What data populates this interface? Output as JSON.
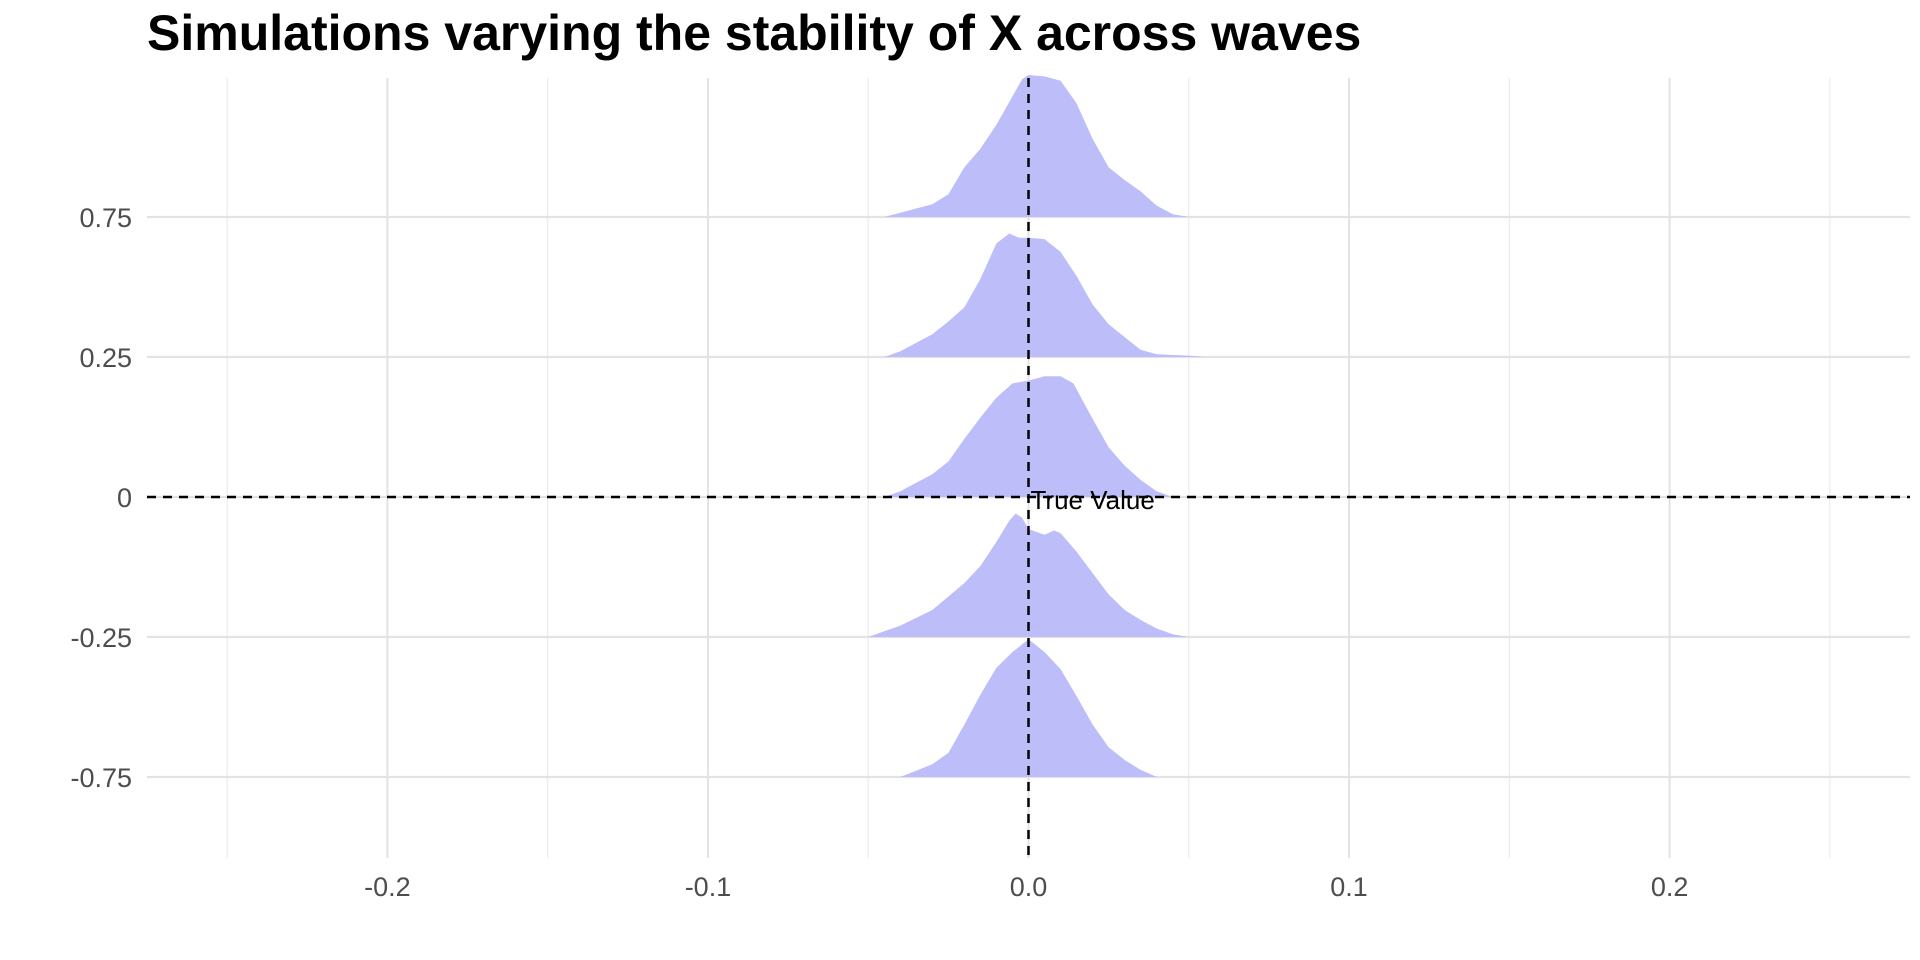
{
  "chart_data": {
    "type": "area",
    "title": "Simulations varying the stability of X across waves",
    "xlabel": "",
    "ylabel": "",
    "xlim": [
      -0.275,
      0.275
    ],
    "x_ticks": [
      "-0.2",
      "-0.1",
      "0.0",
      "0.1",
      "0.2"
    ],
    "x_tick_values": [
      -0.2,
      -0.1,
      0.0,
      0.1,
      0.2
    ],
    "x_minor_values": [
      -0.25,
      -0.15,
      -0.05,
      0.05,
      0.15,
      0.25
    ],
    "y_ticks": [
      "0.75",
      "0.25",
      "0",
      "-0.25",
      "-0.75"
    ],
    "grid": true,
    "fill_color": "#bdbdfa",
    "reference_lines": [
      {
        "orientation": "vertical",
        "value": 0.0,
        "style": "dashed"
      },
      {
        "orientation": "horizontal",
        "value": 0.0,
        "style": "dashed"
      }
    ],
    "annotation": {
      "text": "True Value",
      "x": 0.0,
      "y": 0.0
    },
    "series": [
      {
        "baseline": "0.75",
        "points": [
          [
            -0.045,
            0.0
          ],
          [
            -0.04,
            0.03
          ],
          [
            -0.03,
            0.09
          ],
          [
            -0.025,
            0.16
          ],
          [
            -0.02,
            0.35
          ],
          [
            -0.015,
            0.48
          ],
          [
            -0.01,
            0.65
          ],
          [
            -0.005,
            0.85
          ],
          [
            -0.002,
            0.97
          ],
          [
            0.0,
            1.0
          ],
          [
            0.005,
            0.99
          ],
          [
            0.01,
            0.96
          ],
          [
            0.015,
            0.8
          ],
          [
            0.02,
            0.55
          ],
          [
            0.025,
            0.35
          ],
          [
            0.03,
            0.26
          ],
          [
            0.035,
            0.18
          ],
          [
            0.04,
            0.08
          ],
          [
            0.045,
            0.02
          ],
          [
            0.05,
            0.0
          ]
        ]
      },
      {
        "baseline": "0.25",
        "points": [
          [
            -0.045,
            0.0
          ],
          [
            -0.04,
            0.04
          ],
          [
            -0.03,
            0.16
          ],
          [
            -0.025,
            0.25
          ],
          [
            -0.02,
            0.35
          ],
          [
            -0.015,
            0.55
          ],
          [
            -0.01,
            0.8
          ],
          [
            -0.006,
            0.87
          ],
          [
            -0.003,
            0.84
          ],
          [
            0.0,
            0.84
          ],
          [
            0.005,
            0.83
          ],
          [
            0.01,
            0.74
          ],
          [
            0.015,
            0.57
          ],
          [
            0.02,
            0.37
          ],
          [
            0.025,
            0.23
          ],
          [
            0.03,
            0.14
          ],
          [
            0.035,
            0.05
          ],
          [
            0.04,
            0.02
          ],
          [
            0.05,
            0.01
          ],
          [
            0.055,
            0.0
          ]
        ]
      },
      {
        "baseline": "0",
        "points": [
          [
            -0.045,
            0.0
          ],
          [
            -0.04,
            0.04
          ],
          [
            -0.03,
            0.16
          ],
          [
            -0.025,
            0.25
          ],
          [
            -0.02,
            0.41
          ],
          [
            -0.015,
            0.56
          ],
          [
            -0.01,
            0.7
          ],
          [
            -0.005,
            0.8
          ],
          [
            0.0,
            0.82
          ],
          [
            0.005,
            0.85
          ],
          [
            0.01,
            0.85
          ],
          [
            0.014,
            0.8
          ],
          [
            0.02,
            0.55
          ],
          [
            0.025,
            0.35
          ],
          [
            0.03,
            0.22
          ],
          [
            0.035,
            0.12
          ],
          [
            0.04,
            0.04
          ],
          [
            0.045,
            0.0
          ]
        ]
      },
      {
        "baseline": "-0.25",
        "points": [
          [
            -0.05,
            0.0
          ],
          [
            -0.04,
            0.08
          ],
          [
            -0.03,
            0.19
          ],
          [
            -0.02,
            0.38
          ],
          [
            -0.015,
            0.5
          ],
          [
            -0.01,
            0.67
          ],
          [
            -0.006,
            0.82
          ],
          [
            -0.004,
            0.87
          ],
          [
            -0.002,
            0.84
          ],
          [
            0.0,
            0.76
          ],
          [
            0.005,
            0.72
          ],
          [
            0.008,
            0.75
          ],
          [
            0.01,
            0.73
          ],
          [
            0.015,
            0.6
          ],
          [
            0.02,
            0.45
          ],
          [
            0.025,
            0.3
          ],
          [
            0.03,
            0.19
          ],
          [
            0.035,
            0.12
          ],
          [
            0.04,
            0.06
          ],
          [
            0.045,
            0.02
          ],
          [
            0.05,
            0.0
          ]
        ]
      },
      {
        "baseline": "-0.75",
        "points": [
          [
            -0.04,
            0.0
          ],
          [
            -0.03,
            0.09
          ],
          [
            -0.025,
            0.17
          ],
          [
            -0.02,
            0.37
          ],
          [
            -0.015,
            0.58
          ],
          [
            -0.01,
            0.77
          ],
          [
            -0.005,
            0.88
          ],
          [
            0.0,
            0.97
          ],
          [
            0.005,
            0.88
          ],
          [
            0.01,
            0.76
          ],
          [
            0.015,
            0.57
          ],
          [
            0.02,
            0.37
          ],
          [
            0.025,
            0.21
          ],
          [
            0.03,
            0.12
          ],
          [
            0.035,
            0.05
          ],
          [
            0.04,
            0.0
          ]
        ]
      }
    ]
  }
}
